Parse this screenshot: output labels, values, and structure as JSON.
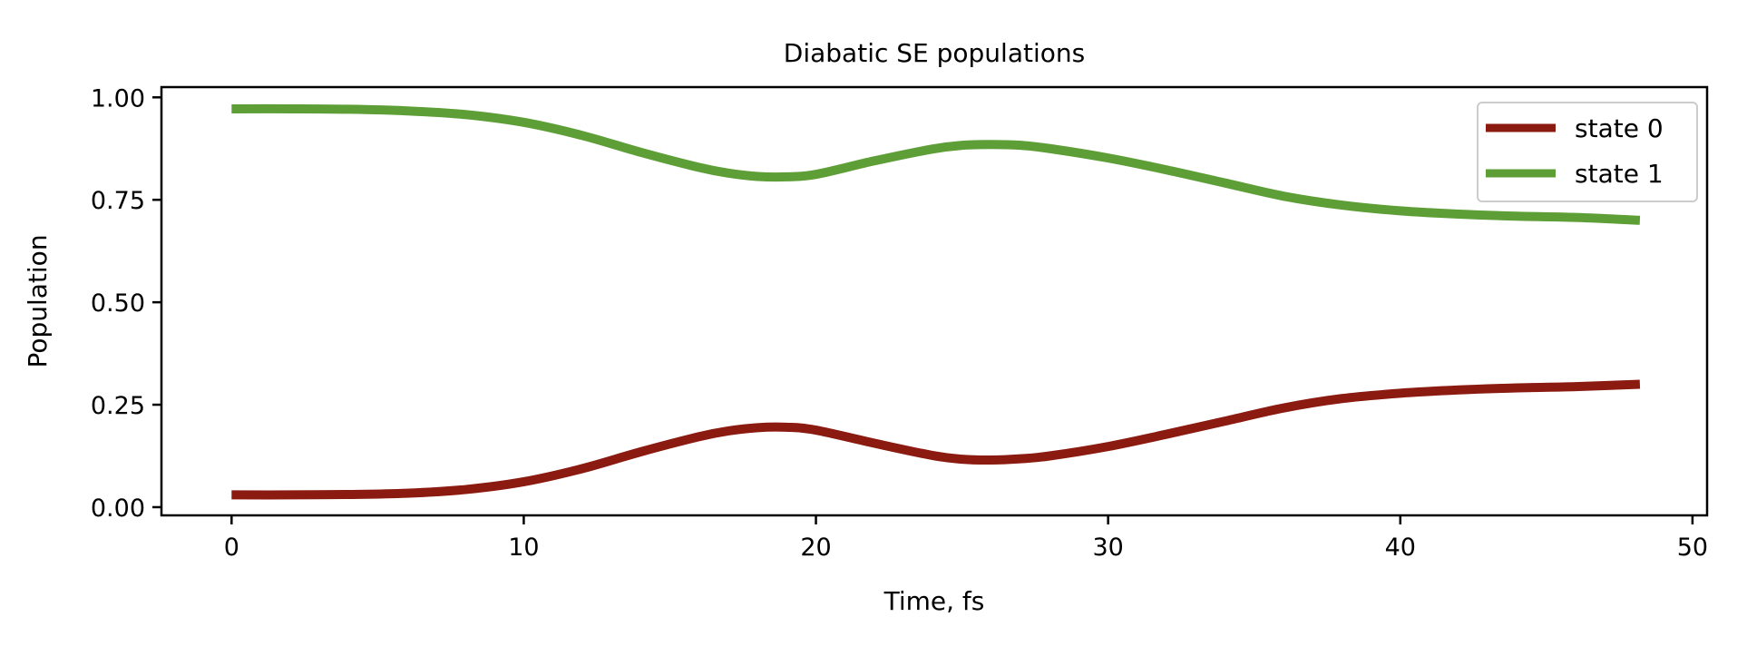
{
  "chart_data": {
    "type": "line",
    "title": "Diabatic SE populations",
    "xlabel": "Time, fs",
    "ylabel": "Population",
    "xlim": [
      -2.4,
      50.5
    ],
    "ylim": [
      -0.02,
      1.025
    ],
    "xticks": [
      0,
      10,
      20,
      30,
      40,
      50
    ],
    "xtick_labels": [
      "0",
      "10",
      "20",
      "30",
      "40",
      "50"
    ],
    "yticks": [
      0.0,
      0.25,
      0.5,
      0.75,
      1.0
    ],
    "ytick_labels": [
      "0.00",
      "0.25",
      "0.50",
      "0.75",
      "1.00"
    ],
    "grid": false,
    "legend_position": "upper right",
    "series": [
      {
        "name": "state 0",
        "color": "#8b1a10",
        "x": [
          0,
          2,
          4,
          6,
          8,
          10,
          12,
          14,
          16,
          17,
          18,
          19,
          20,
          22,
          24,
          25,
          26,
          27,
          28,
          30,
          32,
          34,
          36,
          38,
          40,
          42,
          44,
          46,
          48.2
        ],
        "y": [
          0.03,
          0.03,
          0.031,
          0.034,
          0.043,
          0.062,
          0.094,
          0.135,
          0.172,
          0.186,
          0.194,
          0.195,
          0.188,
          0.156,
          0.126,
          0.117,
          0.115,
          0.118,
          0.125,
          0.148,
          0.178,
          0.21,
          0.242,
          0.265,
          0.278,
          0.286,
          0.291,
          0.294,
          0.3
        ]
      },
      {
        "name": "state 1",
        "color": "#5e9e37",
        "x": [
          0,
          2,
          4,
          6,
          8,
          10,
          12,
          14,
          16,
          17,
          18,
          19,
          20,
          22,
          24,
          25,
          26,
          27,
          28,
          30,
          32,
          34,
          36,
          38,
          40,
          42,
          44,
          46,
          48.2
        ],
        "y": [
          0.972,
          0.972,
          0.971,
          0.967,
          0.958,
          0.939,
          0.907,
          0.866,
          0.829,
          0.815,
          0.807,
          0.806,
          0.812,
          0.845,
          0.874,
          0.883,
          0.885,
          0.883,
          0.875,
          0.852,
          0.823,
          0.791,
          0.759,
          0.737,
          0.723,
          0.715,
          0.71,
          0.707,
          0.7
        ]
      }
    ]
  }
}
